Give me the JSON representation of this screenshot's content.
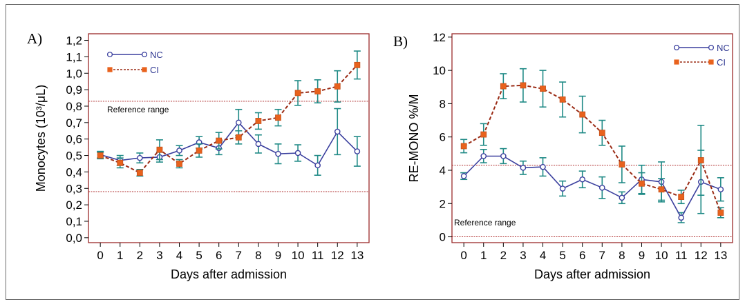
{
  "colors": {
    "nc": "#3a3f9e",
    "ci": "#e8621d",
    "ci_line": "#9a2a14",
    "error": "#1f8a86",
    "frame": "#9a2a2a",
    "reference": "#b03030"
  },
  "chart_data": [
    {
      "type": "line",
      "panel_label": "A)",
      "xlabel": "Days after admission",
      "ylabel": "Monocytes (10³/μL)",
      "x": [
        0,
        1,
        2,
        3,
        4,
        5,
        6,
        7,
        8,
        9,
        10,
        11,
        12,
        13
      ],
      "xlim": [
        -0.6,
        13.6
      ],
      "ylim": [
        -0.03,
        1.24
      ],
      "yticks": [
        "0,0",
        "0,1",
        "0,2",
        "0,3",
        "0,4",
        "0,5",
        "0,6",
        "0,7",
        "0,8",
        "0,9",
        "1,0",
        "1,1",
        "1,2"
      ],
      "ytick_values": [
        0,
        0.1,
        0.2,
        0.3,
        0.4,
        0.5,
        0.6,
        0.7,
        0.8,
        0.9,
        1.0,
        1.1,
        1.2
      ],
      "reference_lines": [
        0.83,
        0.28
      ],
      "reference_label": "Reference range",
      "series": [
        {
          "name": "NC",
          "values": [
            0.505,
            0.47,
            0.485,
            0.49,
            0.53,
            0.58,
            0.545,
            0.7,
            0.57,
            0.51,
            0.515,
            0.44,
            0.645,
            0.525
          ],
          "error": [
            0.02,
            0.03,
            0.03,
            0.03,
            0.03,
            0.035,
            0.04,
            0.08,
            0.055,
            0.06,
            0.05,
            0.06,
            0.14,
            0.09
          ]
        },
        {
          "name": "CI",
          "values": [
            0.5,
            0.455,
            0.395,
            0.535,
            0.45,
            0.53,
            0.59,
            0.61,
            0.71,
            0.73,
            0.88,
            0.89,
            0.92,
            1.05
          ],
          "error": [
            0.02,
            0.03,
            0.02,
            0.06,
            0.025,
            0.04,
            0.05,
            0.04,
            0.05,
            0.05,
            0.075,
            0.07,
            0.095,
            0.085
          ]
        }
      ]
    },
    {
      "type": "line",
      "panel_label": "B)",
      "xlabel": "Days after admission",
      "ylabel": "RE-MONO %/M",
      "x": [
        0,
        1,
        2,
        3,
        4,
        5,
        6,
        7,
        8,
        9,
        10,
        11,
        12,
        13
      ],
      "xlim": [
        -0.6,
        13.6
      ],
      "ylim": [
        -0.35,
        12.2
      ],
      "yticks": [
        "0",
        "2",
        "4",
        "6",
        "8",
        "10",
        "12"
      ],
      "ytick_values": [
        0,
        2,
        4,
        6,
        8,
        10,
        12
      ],
      "reference_lines": [
        4.3,
        0.0
      ],
      "reference_label": "Reference range",
      "series": [
        {
          "name": "NC",
          "values": [
            3.65,
            4.85,
            4.85,
            4.15,
            4.2,
            2.9,
            3.45,
            2.95,
            2.35,
            3.45,
            3.3,
            1.15,
            3.3,
            2.85
          ],
          "error": [
            0.2,
            0.4,
            0.45,
            0.4,
            0.55,
            0.45,
            0.5,
            0.65,
            0.35,
            0.85,
            1.2,
            0.3,
            1.9,
            0.7
          ]
        },
        {
          "name": "CI",
          "values": [
            5.45,
            6.15,
            9.05,
            9.1,
            8.9,
            8.25,
            7.35,
            6.25,
            4.35,
            3.2,
            2.85,
            2.4,
            4.6,
            1.45
          ],
          "error": [
            0.4,
            0.65,
            0.75,
            1.0,
            1.1,
            1.05,
            1.1,
            0.75,
            1.1,
            0.65,
            0.65,
            0.4,
            2.1,
            0.3
          ]
        }
      ]
    }
  ]
}
